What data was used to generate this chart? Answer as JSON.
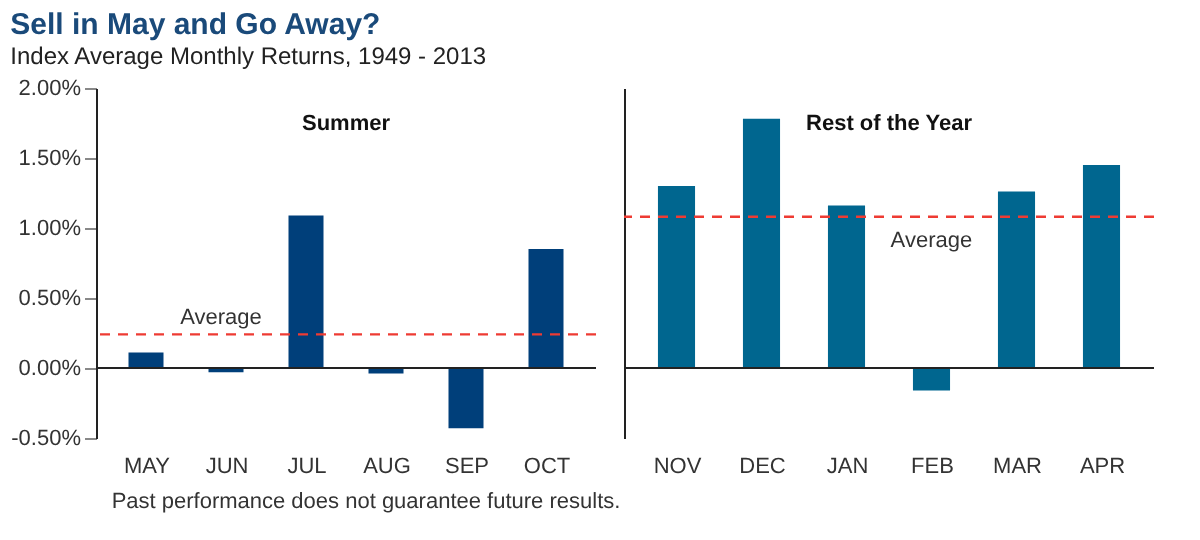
{
  "chart_data": [
    {
      "type": "bar",
      "title": "Sell in May and Go Away?",
      "subtitle": "Index Average Monthly Returns, 1949 - 2013",
      "categories": [
        "MAY",
        "JUN",
        "JUL",
        "AUG",
        "SEP",
        "OCT"
      ],
      "values": [
        0.11,
        -0.03,
        1.09,
        -0.04,
        -0.43,
        0.85
      ],
      "color": "#003f7a",
      "ylim": [
        -0.5,
        2.0
      ],
      "yticks": [
        {
          "value": -0.5,
          "label": "-0.50%"
        },
        {
          "value": 0,
          "label": "0.00%"
        },
        {
          "value": 0.5,
          "label": "0.50%"
        },
        {
          "value": 1.0,
          "label": "1.00%"
        },
        {
          "value": 1.5,
          "label": "1.50%"
        },
        {
          "value": 2.0,
          "label": "2.00%"
        }
      ],
      "ref_lines": [
        {
          "axis": "y",
          "value": 0.24,
          "label": "Average",
          "color": "#ee3b33",
          "line_style": "dashed"
        }
      ],
      "annotations": [
        "Summer",
        "Past performance does not guarantee future results."
      ]
    },
    {
      "type": "bar",
      "categories": [
        "NOV",
        "DEC",
        "JAN",
        "FEB",
        "MAR",
        "APR"
      ],
      "values": [
        1.3,
        1.78,
        1.16,
        -0.16,
        1.26,
        1.45
      ],
      "color": "#00668f",
      "ylim": [
        -0.5,
        2.0
      ],
      "tick_labels": "x",
      "ref_lines": [
        {
          "axis": "y",
          "value": 1.08,
          "label": "Average",
          "color": "#ee3b33",
          "line_style": "dashed"
        }
      ],
      "annotations": [
        "Rest of the Year"
      ]
    }
  ]
}
